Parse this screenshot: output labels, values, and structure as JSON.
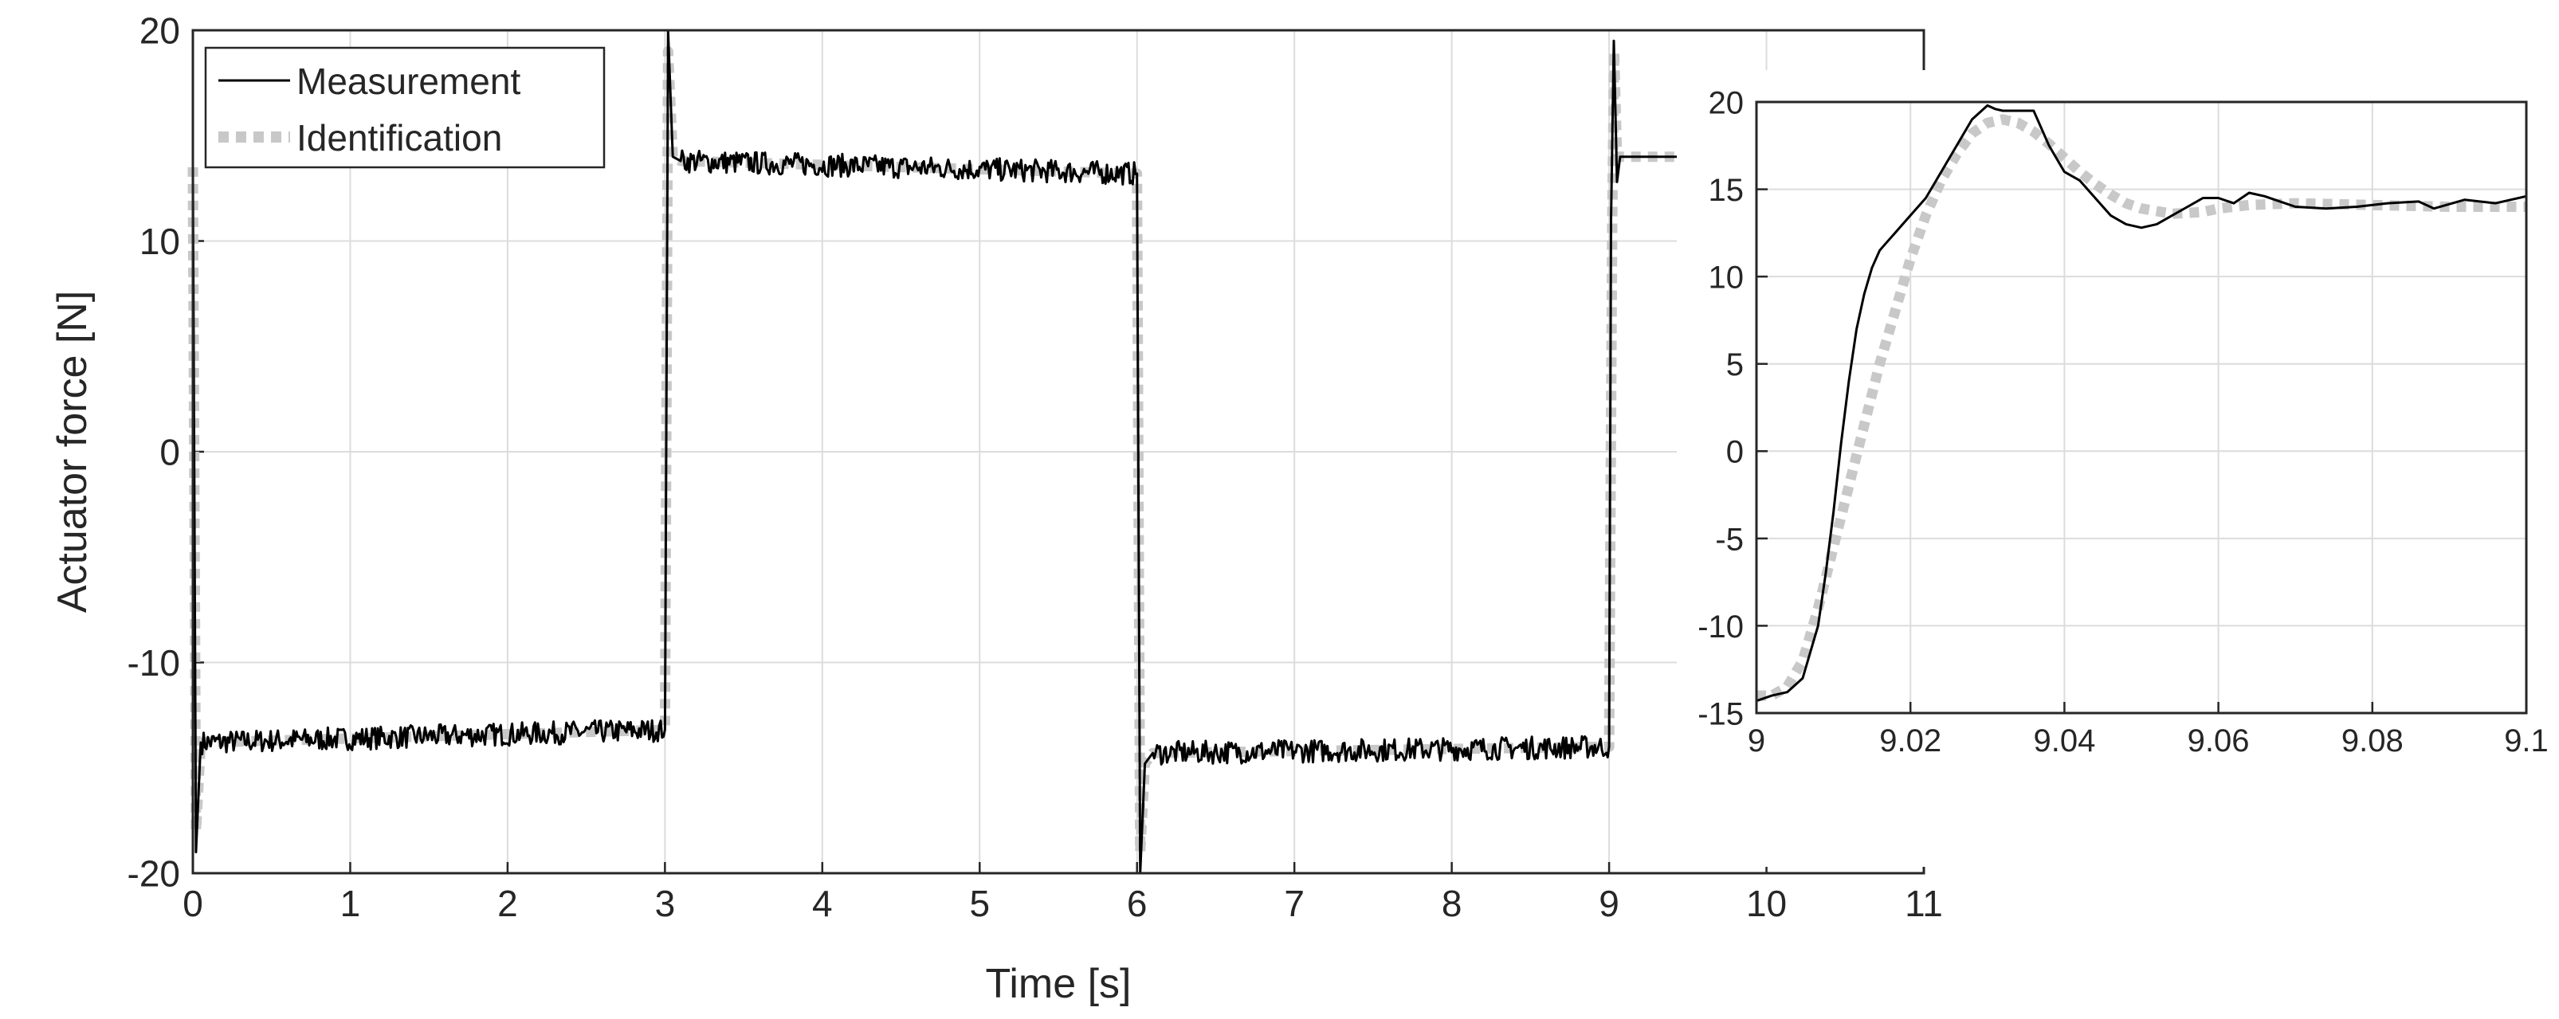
{
  "chart_data": [
    {
      "type": "line",
      "xlabel": "Time [s]",
      "ylabel": "Actuator force [N]",
      "xlim": [
        0,
        11
      ],
      "ylim": [
        -20,
        20
      ],
      "xticks": [
        0,
        1,
        2,
        3,
        4,
        5,
        6,
        7,
        8,
        9,
        10,
        11
      ],
      "yticks": [
        -20,
        -10,
        0,
        10,
        20
      ],
      "grid": true,
      "legend": "top-left",
      "legend_entries": [
        "Measurement",
        "Identification"
      ],
      "series": [
        {
          "name": "Measurement",
          "color": "#000000",
          "style": "solid-noisy",
          "x": [
            0,
            0.02,
            0.05,
            3.0,
            3.02,
            3.05,
            3.1,
            6.0,
            6.02,
            6.05,
            6.1,
            9.0,
            9.012,
            9.03,
            9.05,
            9.07,
            9.45
          ],
          "y": [
            13.5,
            -19,
            -13.8,
            -13.2,
            20,
            14,
            13.8,
            13.2,
            -20,
            -14.8,
            -14.3,
            -14,
            11,
            19.5,
            12.8,
            14,
            14
          ]
        },
        {
          "name": "Identification",
          "color": "#c8c8c8",
          "style": "dotted",
          "x": [
            0,
            0.02,
            0.05,
            3.0,
            3.02,
            3.05,
            3.1,
            6.0,
            6.02,
            6.05,
            6.1,
            9.0,
            9.02,
            9.032,
            9.05,
            9.07,
            9.45
          ],
          "y": [
            13.5,
            -18,
            -13.8,
            -13.2,
            19,
            14,
            13.8,
            13.2,
            -19,
            -14.8,
            -14.3,
            -14,
            11,
            19,
            14,
            14,
            14
          ]
        }
      ]
    },
    {
      "type": "line",
      "xlim": [
        9,
        9.1
      ],
      "ylim": [
        -15,
        20
      ],
      "xticks": [
        9,
        9.02,
        9.04,
        9.06,
        9.08,
        9.1
      ],
      "yticks": [
        -15,
        -10,
        -5,
        0,
        5,
        10,
        15,
        20
      ],
      "grid": true,
      "series": [
        {
          "name": "Measurement",
          "color": "#000000",
          "style": "solid",
          "x": [
            9.0,
            9.002,
            9.004,
            9.006,
            9.008,
            9.009,
            9.01,
            9.011,
            9.012,
            9.013,
            9.014,
            9.015,
            9.016,
            9.017,
            9.018,
            9.019,
            9.02,
            9.022,
            9.024,
            9.026,
            9.028,
            9.03,
            9.031,
            9.032,
            9.034,
            9.036,
            9.038,
            9.04,
            9.042,
            9.044,
            9.046,
            9.048,
            9.05,
            9.052,
            9.054,
            9.056,
            9.058,
            9.06,
            9.062,
            9.064,
            9.066,
            9.068,
            9.07,
            9.074,
            9.078,
            9.082,
            9.086,
            9.088,
            9.092,
            9.096,
            9.1
          ],
          "y": [
            -14.3,
            -14.0,
            -13.8,
            -13.0,
            -10.0,
            -7.0,
            -3.5,
            0.5,
            4.0,
            7.0,
            9.0,
            10.5,
            11.5,
            12.0,
            12.5,
            13.0,
            13.5,
            14.5,
            16.0,
            17.5,
            19.0,
            19.8,
            19.6,
            19.5,
            19.5,
            19.5,
            17.5,
            16.0,
            15.5,
            14.5,
            13.5,
            13.0,
            12.8,
            13.0,
            13.5,
            14.0,
            14.5,
            14.5,
            14.2,
            14.8,
            14.6,
            14.3,
            14.0,
            13.9,
            14.0,
            14.2,
            14.3,
            13.9,
            14.4,
            14.2,
            14.6
          ]
        },
        {
          "name": "Identification",
          "color": "#c8c8c8",
          "style": "dotted",
          "x": [
            9.0,
            9.002,
            9.004,
            9.006,
            9.008,
            9.01,
            9.012,
            9.014,
            9.016,
            9.018,
            9.02,
            9.022,
            9.024,
            9.026,
            9.028,
            9.03,
            9.032,
            9.034,
            9.036,
            9.038,
            9.04,
            9.042,
            9.044,
            9.046,
            9.048,
            9.05,
            9.054,
            9.058,
            9.06,
            9.064,
            9.07,
            9.08,
            9.09,
            9.1
          ],
          "y": [
            -14.0,
            -14.0,
            -13.5,
            -12.0,
            -9.0,
            -5.5,
            -2.0,
            1.5,
            5.0,
            8.0,
            11.0,
            13.5,
            15.5,
            17.0,
            18.2,
            18.8,
            19.0,
            18.8,
            18.3,
            17.6,
            16.8,
            16.0,
            15.3,
            14.7,
            14.2,
            13.9,
            13.6,
            13.7,
            13.9,
            14.1,
            14.2,
            14.1,
            14.0,
            14.0
          ]
        }
      ]
    }
  ]
}
